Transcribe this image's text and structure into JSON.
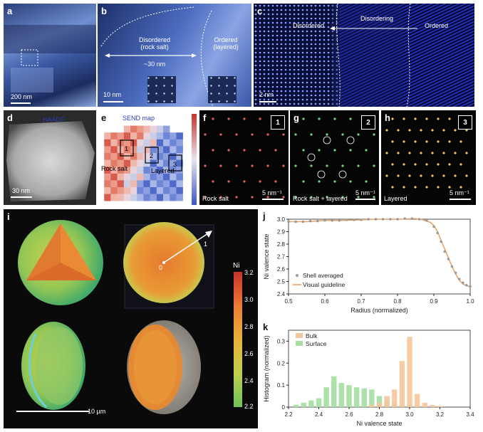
{
  "panels": {
    "a": {
      "label": "a",
      "scale": "200 nm"
    },
    "b": {
      "label": "b",
      "disordered": "Disordered",
      "disordered_sub": "(rock salt)",
      "ordered": "Ordered",
      "ordered_sub": "(layered)",
      "width_label": "~30 nm",
      "scale": "10 nm"
    },
    "c": {
      "label": "c",
      "disordering": "Disordering",
      "disordered": "Disordered",
      "ordered": "Ordered",
      "scale": "2 nm"
    },
    "d": {
      "label": "d",
      "title": "HAADF",
      "scale": "30 nm"
    },
    "e": {
      "label": "e",
      "title": "SEND map",
      "rock_salt": "Rock salt",
      "layered": "Layered",
      "region1": "1",
      "region2": "2",
      "region3": "3"
    },
    "f": {
      "label": "f",
      "badge": "1",
      "caption": "Rock salt",
      "scale": "5 nm⁻¹"
    },
    "g": {
      "label": "g",
      "badge": "2",
      "caption": "Rock salt + layered",
      "scale": "5 nm⁻¹"
    },
    "h": {
      "label": "h",
      "badge": "3",
      "caption": "Layered",
      "scale": "5 nm⁻¹"
    },
    "i": {
      "label": "i",
      "colorbar_title": "Ni",
      "colorbar_ticks": [
        "3.2",
        "3.0",
        "2.8",
        "2.6",
        "2.4",
        "2.2"
      ],
      "origin": "0",
      "edge": "1",
      "scale": "10 µm"
    }
  },
  "charts_text": {
    "j": {
      "label": "j",
      "legend_shell": "Shell averaged",
      "legend_guide": "Visual guideline"
    },
    "k": {
      "label": "k",
      "legend_bulk": "Bulk",
      "legend_surface": "Surface"
    }
  },
  "colors": {
    "shell_points": "#9a9a9a",
    "guideline": "#e8a366",
    "bulk": "#f6c79b",
    "surface": "#a8dfa4"
  },
  "chart_data": [
    {
      "type": "line",
      "xlabel": "Radius (normalized)",
      "ylabel": "Ni valence state",
      "xlim": [
        0.5,
        1.0
      ],
      "ylim": [
        2.4,
        3.0
      ],
      "xticks": [
        "0.5",
        "0.6",
        "0.7",
        "0.8",
        "0.9",
        "1.0"
      ],
      "yticks": [
        "2.4",
        "2.5",
        "2.6",
        "2.7",
        "2.8",
        "2.9",
        "3.0"
      ],
      "legend": "bottom-left",
      "series": [
        {
          "name": "Shell averaged",
          "x": [
            0.5,
            0.52,
            0.54,
            0.56,
            0.58,
            0.6,
            0.62,
            0.64,
            0.66,
            0.68,
            0.7,
            0.72,
            0.74,
            0.76,
            0.78,
            0.8,
            0.82,
            0.84,
            0.86,
            0.88,
            0.9,
            0.91,
            0.92,
            0.93,
            0.94,
            0.95,
            0.96,
            0.97,
            0.98,
            0.99,
            1.0
          ],
          "y": [
            2.98,
            2.98,
            2.98,
            2.985,
            2.985,
            2.99,
            2.99,
            2.99,
            2.995,
            2.995,
            2.995,
            3.0,
            3.0,
            3.0,
            3.0,
            3.0,
            3.005,
            3.005,
            3.0,
            2.99,
            2.94,
            2.89,
            2.82,
            2.74,
            2.68,
            2.62,
            2.57,
            2.52,
            2.49,
            2.47,
            2.46
          ]
        },
        {
          "name": "Visual guideline",
          "x": [
            0.5,
            0.55,
            0.6,
            0.65,
            0.7,
            0.75,
            0.8,
            0.85,
            0.87,
            0.89,
            0.9,
            0.91,
            0.92,
            0.93,
            0.94,
            0.95,
            0.96,
            0.97,
            0.98,
            0.99,
            1.0
          ],
          "y": [
            2.98,
            2.98,
            2.99,
            2.99,
            2.995,
            3.0,
            3.0,
            3.005,
            2.995,
            2.975,
            2.95,
            2.9,
            2.83,
            2.76,
            2.69,
            2.62,
            2.56,
            2.51,
            2.48,
            2.465,
            2.46
          ]
        }
      ]
    },
    {
      "type": "bar",
      "xlabel": "Ni valence state",
      "ylabel": "Histogram (normalized)",
      "xlim": [
        2.2,
        3.4
      ],
      "ylim": [
        0,
        0.35
      ],
      "xticks": [
        "2.2",
        "2.4",
        "2.6",
        "2.8",
        "3.0",
        "3.2",
        "3.4"
      ],
      "yticks": [
        "0",
        "0.1",
        "0.2",
        "0.3"
      ],
      "legend": "top-left",
      "x": [
        2.25,
        2.3,
        2.35,
        2.4,
        2.45,
        2.5,
        2.55,
        2.6,
        2.65,
        2.7,
        2.75,
        2.8,
        2.85,
        2.9,
        2.95,
        3.0,
        3.05,
        3.1,
        3.15,
        3.2,
        3.25
      ],
      "series": [
        {
          "name": "Bulk",
          "values": [
            0,
            0,
            0,
            0,
            0,
            0,
            0,
            0,
            0,
            0,
            0.01,
            0.02,
            0.05,
            0.08,
            0.21,
            0.32,
            0.06,
            0.02,
            0.01,
            0.005,
            0
          ]
        },
        {
          "name": "Surface",
          "values": [
            0.01,
            0.02,
            0.03,
            0.04,
            0.09,
            0.14,
            0.11,
            0.1,
            0.09,
            0.085,
            0.08,
            0.05,
            0.03,
            0.02,
            0.01,
            0.01,
            0.005,
            0,
            0,
            0,
            0
          ]
        }
      ]
    }
  ]
}
